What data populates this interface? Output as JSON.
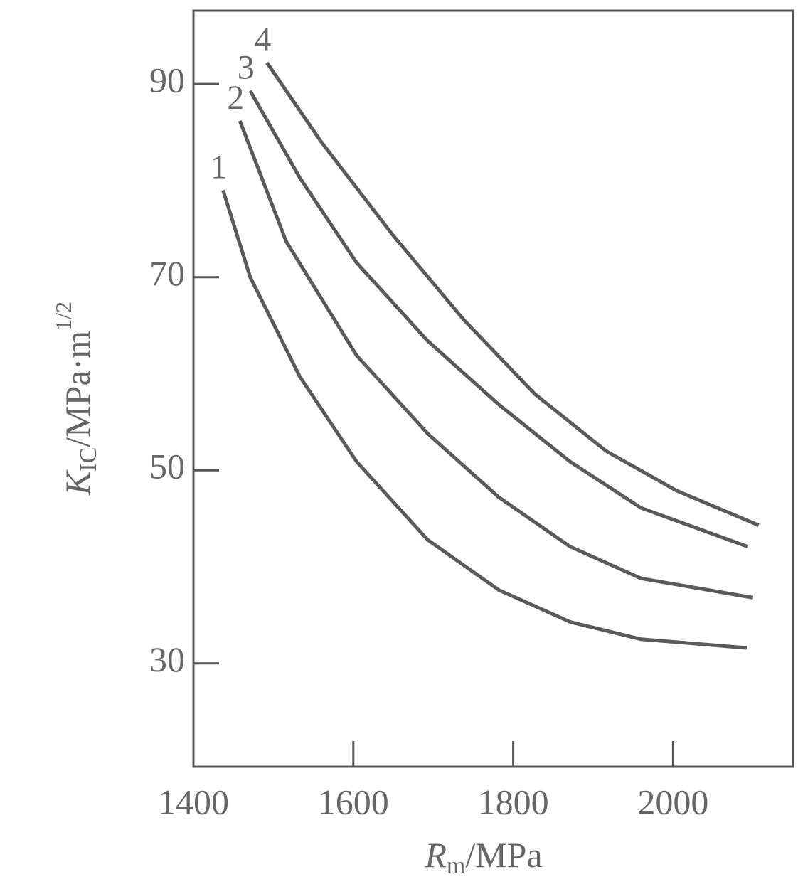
{
  "chart_data": {
    "type": "line",
    "x_label": {
      "symbol": "R",
      "subscript": "m",
      "unit": "/MPa"
    },
    "y_label": {
      "symbol": "K",
      "subscript": "IC",
      "unit": "/MPa·m",
      "exponent": "1/2"
    },
    "series": [
      {
        "name": "1",
        "color": "#5a5a5a",
        "x": [
          1437,
          1471,
          1533,
          1604,
          1693,
          1782,
          1871,
          1960,
          2092
        ],
        "values": [
          79,
          70,
          59.7,
          50.9,
          42.8,
          37.6,
          34.3,
          32.5,
          31.6
        ]
      },
      {
        "name": "2",
        "color": "#5a5a5a",
        "x": [
          1458,
          1516,
          1604,
          1693,
          1782,
          1871,
          1960,
          2100
        ],
        "values": [
          86.2,
          73.7,
          61.9,
          53.8,
          47.2,
          42.1,
          38.8,
          36.8
        ]
      },
      {
        "name": "3",
        "color": "#5a5a5a",
        "x": [
          1471,
          1533,
          1604,
          1693,
          1782,
          1871,
          1960,
          2093
        ],
        "values": [
          89.3,
          80.3,
          71.5,
          63.4,
          56.8,
          50.9,
          46.1,
          42.1
        ]
      },
      {
        "name": "4",
        "color": "#5a5a5a",
        "x": [
          1492,
          1560,
          1649,
          1738,
          1827,
          1916,
          2004,
          2107
        ],
        "values": [
          92.2,
          84,
          74.4,
          65.6,
          57.9,
          52,
          47.9,
          44.3
        ]
      }
    ],
    "xlim": [
      1400,
      2150
    ],
    "xticks": [
      1400,
      1600,
      1800,
      2000
    ],
    "ylim": [
      19.3,
      97.6
    ],
    "yticks": [
      30,
      50,
      70,
      90
    ]
  }
}
